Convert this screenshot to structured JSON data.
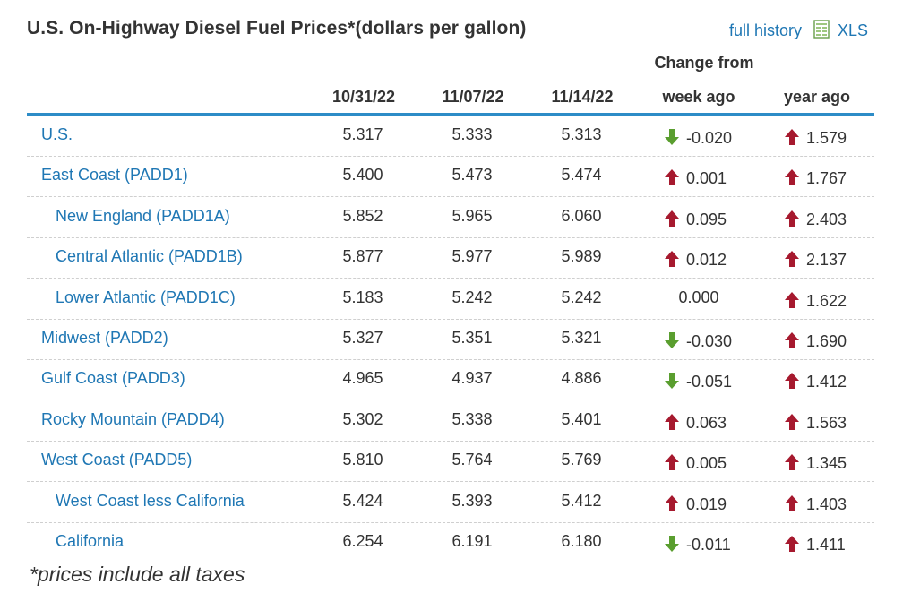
{
  "title": "U.S. On-Highway Diesel Fuel Prices*(dollars per gallon)",
  "links": {
    "full_history": "full history",
    "xls": "XLS"
  },
  "columns": {
    "change_group": "Change from",
    "dates": [
      "10/31/22",
      "11/07/22",
      "11/14/22"
    ],
    "week_ago": "week ago",
    "year_ago": "year ago"
  },
  "colors": {
    "link": "#1f77b4",
    "rule": "#2d8cc7",
    "up": "#a6192e",
    "down": "#5a9e2f"
  },
  "rows": [
    {
      "region": "U.S.",
      "indent": 0,
      "v1": "5.317",
      "v2": "5.333",
      "v3": "5.313",
      "week": "-0.020",
      "week_dir": "down",
      "year": "1.579",
      "year_dir": "up"
    },
    {
      "region": "East Coast (PADD1)",
      "indent": 0,
      "v1": "5.400",
      "v2": "5.473",
      "v3": "5.474",
      "week": "0.001",
      "week_dir": "up",
      "year": "1.767",
      "year_dir": "up"
    },
    {
      "region": "New England (PADD1A)",
      "indent": 1,
      "v1": "5.852",
      "v2": "5.965",
      "v3": "6.060",
      "week": "0.095",
      "week_dir": "up",
      "year": "2.403",
      "year_dir": "up"
    },
    {
      "region": "Central Atlantic (PADD1B)",
      "indent": 1,
      "v1": "5.877",
      "v2": "5.977",
      "v3": "5.989",
      "week": "0.012",
      "week_dir": "up",
      "year": "2.137",
      "year_dir": "up"
    },
    {
      "region": "Lower Atlantic (PADD1C)",
      "indent": 1,
      "v1": "5.183",
      "v2": "5.242",
      "v3": "5.242",
      "week": "0.000",
      "week_dir": "none",
      "year": "1.622",
      "year_dir": "up"
    },
    {
      "region": "Midwest (PADD2)",
      "indent": 0,
      "v1": "5.327",
      "v2": "5.351",
      "v3": "5.321",
      "week": "-0.030",
      "week_dir": "down",
      "year": "1.690",
      "year_dir": "up"
    },
    {
      "region": "Gulf Coast (PADD3)",
      "indent": 0,
      "v1": "4.965",
      "v2": "4.937",
      "v3": "4.886",
      "week": "-0.051",
      "week_dir": "down",
      "year": "1.412",
      "year_dir": "up"
    },
    {
      "region": "Rocky Mountain (PADD4)",
      "indent": 0,
      "v1": "5.302",
      "v2": "5.338",
      "v3": "5.401",
      "week": "0.063",
      "week_dir": "up",
      "year": "1.563",
      "year_dir": "up"
    },
    {
      "region": "West Coast (PADD5)",
      "indent": 0,
      "v1": "5.810",
      "v2": "5.764",
      "v3": "5.769",
      "week": "0.005",
      "week_dir": "up",
      "year": "1.345",
      "year_dir": "up"
    },
    {
      "region": "West Coast less California",
      "indent": 1,
      "v1": "5.424",
      "v2": "5.393",
      "v3": "5.412",
      "week": "0.019",
      "week_dir": "up",
      "year": "1.403",
      "year_dir": "up"
    },
    {
      "region": "California",
      "indent": 1,
      "v1": "6.254",
      "v2": "6.191",
      "v3": "6.180",
      "week": "-0.011",
      "week_dir": "down",
      "year": "1.411",
      "year_dir": "up"
    }
  ],
  "footnote": "*prices include all taxes"
}
